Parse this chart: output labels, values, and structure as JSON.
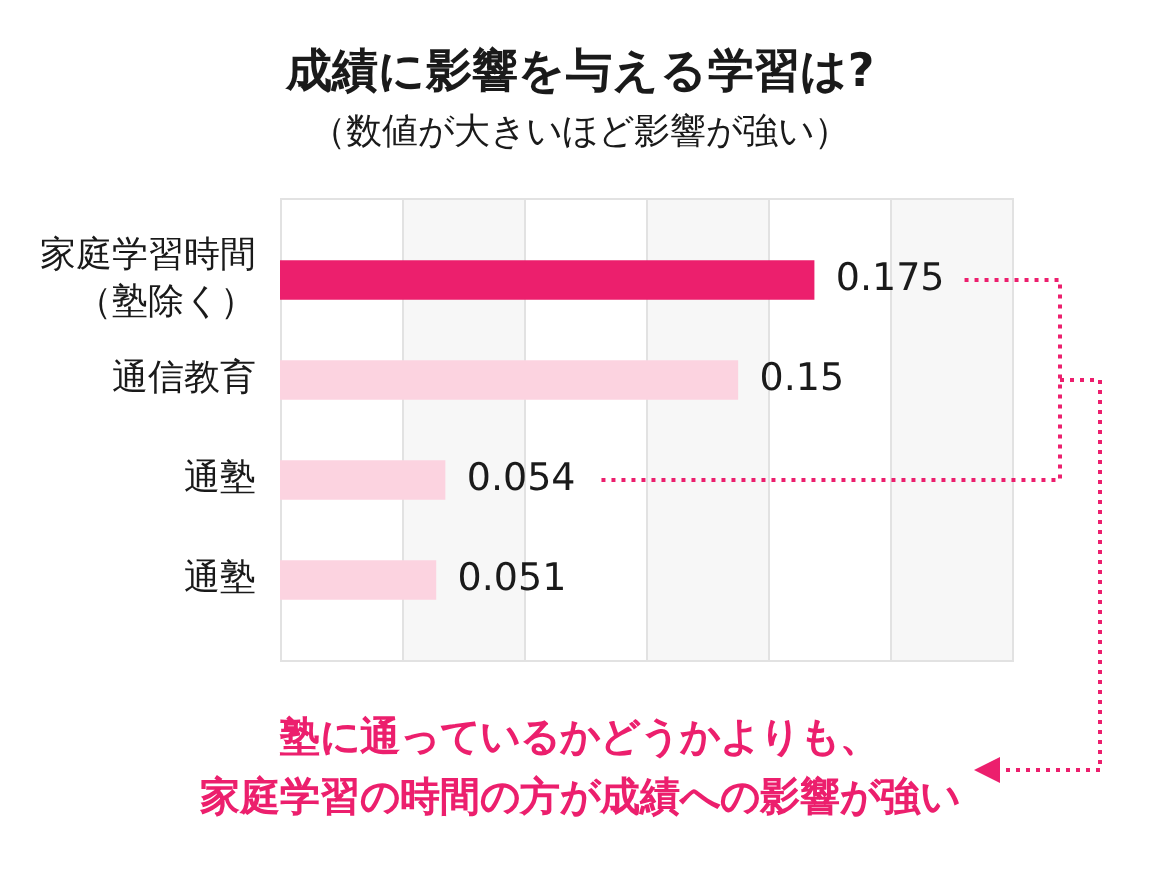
{
  "chart_data": {
    "type": "bar",
    "orientation": "horizontal",
    "title": "成績に影響を与える学習は?",
    "subtitle": "（数値が大きいほど影響が強い）",
    "categories": [
      "家庭学習時間（塾除く）",
      "通信教育",
      "通塾",
      "通塾"
    ],
    "values": [
      0.175,
      0.15,
      0.054,
      0.051
    ],
    "colors": [
      "#ec1f6d",
      "#fcd3e0",
      "#fcd3e0",
      "#fcd3e0"
    ],
    "xlim": [
      0,
      0.24
    ],
    "xticks": [
      {
        "value": 0,
        "label": null
      },
      {
        "value": 0.04,
        "label": null
      },
      {
        "value": 0.08,
        "label": null
      },
      {
        "value": 0.12,
        "label": null
      },
      {
        "value": 0.16,
        "label": null
      },
      {
        "value": 0.2,
        "label": null
      },
      {
        "value": 0.24,
        "label": null
      }
    ],
    "tick_labels": "y",
    "grid": "x",
    "bands": [
      {
        "axis": "x",
        "from": 0.04,
        "to": 0.08,
        "color": "#f7f7f7"
      },
      {
        "axis": "x",
        "from": 0.12,
        "to": 0.16,
        "color": "#f7f7f7"
      },
      {
        "axis": "x",
        "from": 0.2,
        "to": 0.24,
        "color": "#f7f7f7"
      }
    ],
    "data_labels": true,
    "annotations": [
      "塾に通っているかどうかよりも、家庭学習の時間の方が成績への影響が強い"
    ]
  }
}
